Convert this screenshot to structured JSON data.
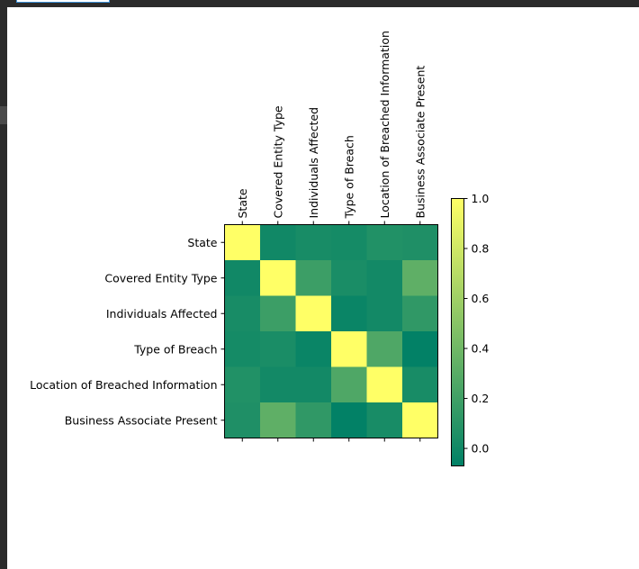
{
  "chart_data": {
    "type": "heatmap",
    "labels": [
      "State",
      "Covered Entity Type",
      "Individuals Affected",
      "Type of Breach",
      "Location of Breached Information",
      "Business Associate Present"
    ],
    "matrix": [
      [
        1.0,
        0.0,
        0.03,
        0.02,
        0.07,
        0.06
      ],
      [
        0.0,
        1.0,
        0.18,
        0.04,
        0.01,
        0.33
      ],
      [
        0.03,
        0.18,
        1.0,
        -0.03,
        0.01,
        0.13
      ],
      [
        0.02,
        0.04,
        -0.03,
        1.0,
        0.26,
        -0.06
      ],
      [
        0.07,
        0.01,
        0.01,
        0.26,
        1.0,
        0.03
      ],
      [
        0.06,
        0.33,
        0.13,
        -0.06,
        0.03,
        1.0
      ]
    ],
    "colormap": "summer",
    "colors": {
      "low": "#008066",
      "high": "#ffff66"
    },
    "colorbar": {
      "range": [
        -0.07,
        1.0
      ],
      "ticks": [
        0.0,
        0.2,
        0.4,
        0.6,
        0.8,
        1.0
      ],
      "tick_labels": [
        "0.0",
        "0.2",
        "0.4",
        "0.6",
        "0.8",
        "1.0"
      ]
    },
    "title": "",
    "xlabel": "",
    "ylabel": ""
  }
}
